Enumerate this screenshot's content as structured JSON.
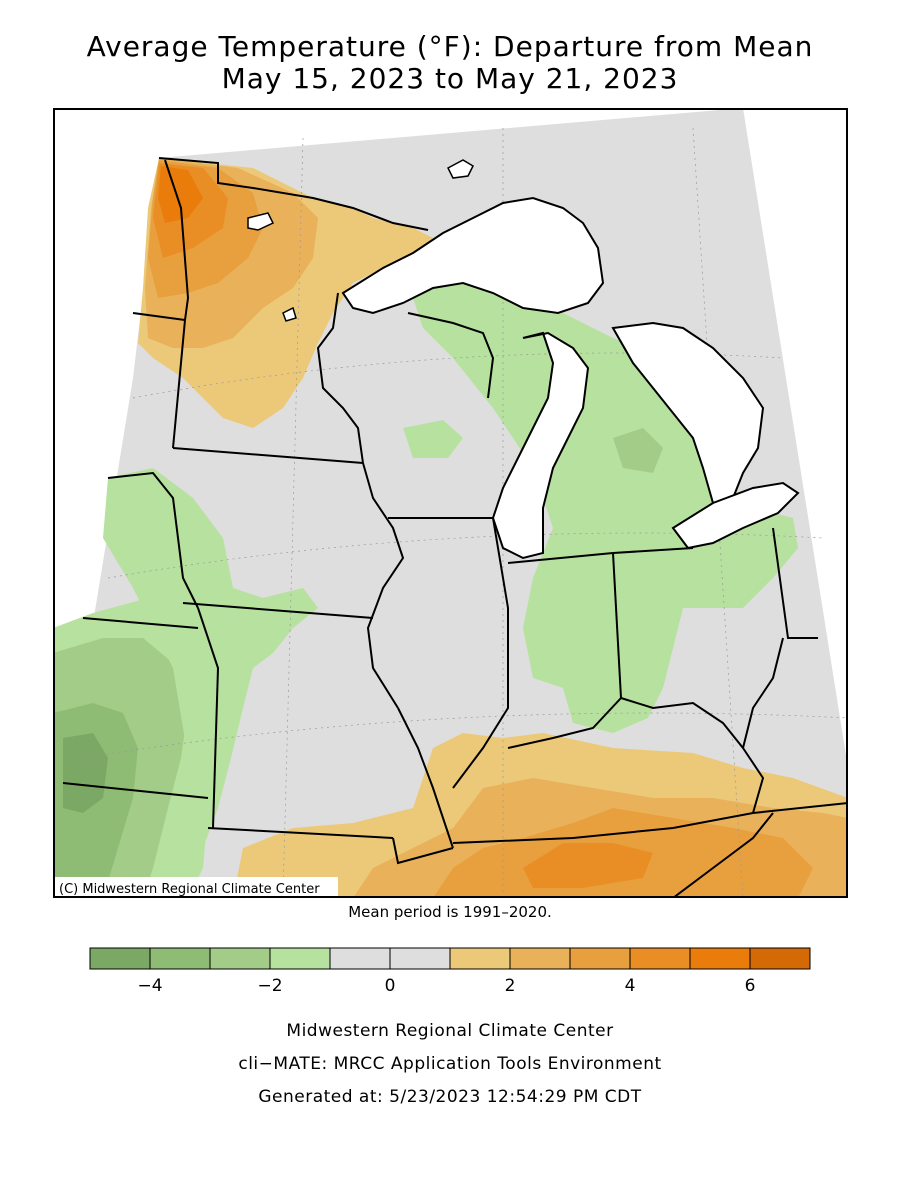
{
  "title": {
    "line1": "Average Temperature (°F): Departure from Mean",
    "line2": "May 15, 2023 to May 21, 2023"
  },
  "map": {
    "credit": "(C) Midwestern Regional Climate Center",
    "mean_period": "Mean period is 1991–2020."
  },
  "legend": {
    "bins": [
      {
        "from": -5,
        "to": -4,
        "color": "#7ba864"
      },
      {
        "from": -4,
        "to": -3,
        "color": "#8fbc74"
      },
      {
        "from": -3,
        "to": -2,
        "color": "#a2cc88"
      },
      {
        "from": -2,
        "to": -1,
        "color": "#b6e19e"
      },
      {
        "from": -1,
        "to": 0,
        "color": "#dedede"
      },
      {
        "from": 0,
        "to": 1,
        "color": "#dedede"
      },
      {
        "from": 1,
        "to": 2,
        "color": "#ecc978"
      },
      {
        "from": 2,
        "to": 3,
        "color": "#e9b25a"
      },
      {
        "from": 3,
        "to": 4,
        "color": "#e8a03e"
      },
      {
        "from": 4,
        "to": 5,
        "color": "#e98e24"
      },
      {
        "from": 5,
        "to": 6,
        "color": "#e97c0a"
      },
      {
        "from": 6,
        "to": 7,
        "color": "#d36a05"
      }
    ],
    "tick_labels": [
      {
        "value": -4,
        "label": "−4"
      },
      {
        "value": -2,
        "label": "−2"
      },
      {
        "value": 0,
        "label": "0"
      },
      {
        "value": 2,
        "label": "2"
      },
      {
        "value": 4,
        "label": "4"
      },
      {
        "value": 6,
        "label": "6"
      }
    ]
  },
  "footer": {
    "org": "Midwestern Regional Climate Center",
    "tool": "cli−MATE: MRCC Application Tools Environment",
    "generated": "Generated at: 5/23/2023 12:54:29 PM CDT"
  }
}
